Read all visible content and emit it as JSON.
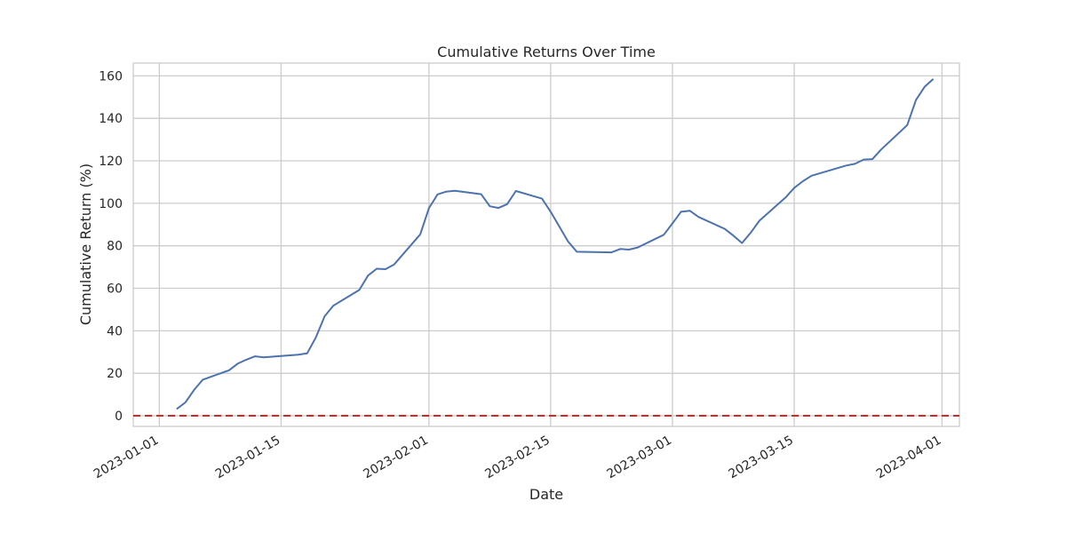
{
  "chart_data": {
    "type": "line",
    "title": "Cumulative Returns Over Time",
    "xlabel": "Date",
    "ylabel": "Cumulative Return (%)",
    "x_ticks": [
      "2023-01-01",
      "2023-01-15",
      "2023-02-01",
      "2023-02-15",
      "2023-03-01",
      "2023-03-15",
      "2023-04-01"
    ],
    "y_ticks": [
      0,
      20,
      40,
      60,
      80,
      100,
      120,
      140,
      160
    ],
    "xlim": [
      "2022-12-29",
      "2023-04-03"
    ],
    "ylim": [
      -5,
      166
    ],
    "grid": true,
    "line_color": "#4c72b0",
    "reference_line": {
      "y": 0,
      "color": "#d62728",
      "style": "dashed"
    },
    "series": [
      {
        "points": [
          [
            "2023-01-03",
            3.2
          ],
          [
            "2023-01-04",
            6.3
          ],
          [
            "2023-01-05",
            12.2
          ],
          [
            "2023-01-06",
            17.0
          ],
          [
            "2023-01-09",
            21.4
          ],
          [
            "2023-01-10",
            24.5
          ],
          [
            "2023-01-11",
            26.4
          ],
          [
            "2023-01-12",
            28.0
          ],
          [
            "2023-01-13",
            27.5
          ],
          [
            "2023-01-17",
            28.8
          ],
          [
            "2023-01-18",
            29.4
          ],
          [
            "2023-01-19",
            36.9
          ],
          [
            "2023-01-20",
            46.8
          ],
          [
            "2023-01-21",
            51.8
          ],
          [
            "2023-01-24",
            59.2
          ],
          [
            "2023-01-25",
            66.0
          ],
          [
            "2023-01-26",
            69.2
          ],
          [
            "2023-01-27",
            69.0
          ],
          [
            "2023-01-28",
            71.2
          ],
          [
            "2023-01-31",
            85.4
          ],
          [
            "2023-02-01",
            97.7
          ],
          [
            "2023-02-02",
            104.2
          ],
          [
            "2023-02-03",
            105.5
          ],
          [
            "2023-02-04",
            105.9
          ],
          [
            "2023-02-07",
            104.3
          ],
          [
            "2023-02-08",
            98.6
          ],
          [
            "2023-02-09",
            97.8
          ],
          [
            "2023-02-10",
            99.6
          ],
          [
            "2023-02-11",
            105.8
          ],
          [
            "2023-02-14",
            102.2
          ],
          [
            "2023-02-15",
            96.0
          ],
          [
            "2023-02-17",
            82.0
          ],
          [
            "2023-02-18",
            77.2
          ],
          [
            "2023-02-22",
            76.9
          ],
          [
            "2023-02-23",
            78.5
          ],
          [
            "2023-02-24",
            78.2
          ],
          [
            "2023-02-25",
            79.2
          ],
          [
            "2023-02-28",
            85.2
          ],
          [
            "2023-03-01",
            90.5
          ],
          [
            "2023-03-02",
            96.0
          ],
          [
            "2023-03-03",
            96.5
          ],
          [
            "2023-03-04",
            93.6
          ],
          [
            "2023-03-07",
            88.0
          ],
          [
            "2023-03-08",
            84.8
          ],
          [
            "2023-03-09",
            81.3
          ],
          [
            "2023-03-10",
            86.2
          ],
          [
            "2023-03-11",
            91.8
          ],
          [
            "2023-03-14",
            102.7
          ],
          [
            "2023-03-15",
            107.2
          ],
          [
            "2023-03-16",
            110.4
          ],
          [
            "2023-03-17",
            113.0
          ],
          [
            "2023-03-21",
            117.8
          ],
          [
            "2023-03-22",
            118.6
          ],
          [
            "2023-03-23",
            120.6
          ],
          [
            "2023-03-24",
            120.8
          ],
          [
            "2023-03-25",
            125.3
          ],
          [
            "2023-03-28",
            136.8
          ],
          [
            "2023-03-29",
            148.6
          ],
          [
            "2023-03-30",
            154.8
          ],
          [
            "2023-03-31",
            158.5
          ]
        ]
      }
    ]
  }
}
